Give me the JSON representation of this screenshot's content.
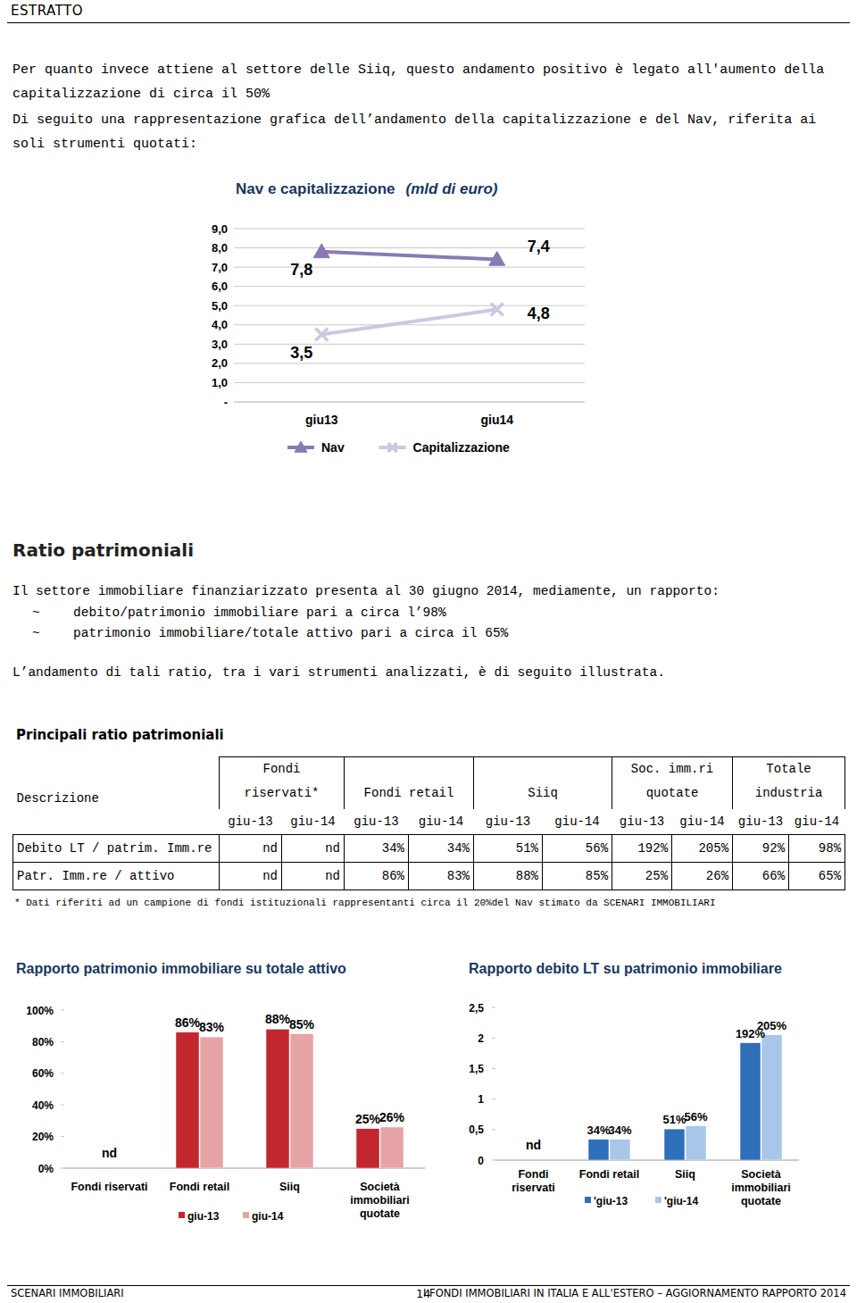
{
  "header": {
    "title": "ESTRATTO"
  },
  "paragraphs": [
    "Per quanto invece attiene al settore delle Siiq, questo andamento positivo è legato all'aumento della capitalizzazione di circa il 50%",
    "Di seguito una rappresentazione grafica dell’andamento della capitalizzazione e del Nav, riferita ai soli strumenti quotati:"
  ],
  "chart_data": [
    {
      "type": "line",
      "title": "Nav e capitalizzazione",
      "subtitle": "(mld di euro)",
      "categories": [
        "giu13",
        "giu14"
      ],
      "series": [
        {
          "name": "Nav",
          "color": "#8a7ab4",
          "marker": "triangle",
          "line_style": "solid",
          "values": [
            7.8,
            7.4
          ],
          "value_labels": [
            "7,8",
            "7,4"
          ]
        },
        {
          "name": "Capitalizzazione",
          "color": "#cdc7e2",
          "marker": "x",
          "line_style": "solid",
          "values": [
            3.5,
            4.8
          ],
          "value_labels": [
            "3,5",
            "4,8"
          ]
        }
      ],
      "ylim": [
        0,
        9
      ],
      "yticks": [
        {
          "value": 0,
          "label": "-"
        },
        {
          "value": 1,
          "label": "1,0"
        },
        {
          "value": 2,
          "label": "2,0"
        },
        {
          "value": 3,
          "label": "3,0"
        },
        {
          "value": 4,
          "label": "4,0"
        },
        {
          "value": 5,
          "label": "5,0"
        },
        {
          "value": 6,
          "label": "6,0"
        },
        {
          "value": 7,
          "label": "7,0"
        },
        {
          "value": 8,
          "label": "8,0"
        },
        {
          "value": 9,
          "label": "9,0"
        }
      ],
      "grid": true,
      "legend": "bottom",
      "data_labels": true
    },
    {
      "type": "bar",
      "title": "Rapporto patrimonio immobiliare su totale attivo",
      "categories": [
        "Fondi riservati",
        "Fondi retail",
        "Siiq",
        "Società immobiliari quotate"
      ],
      "series": [
        {
          "name": "giu-13",
          "color": "#c1272d",
          "values": [
            null,
            86,
            88,
            25
          ],
          "value_labels": [
            null,
            "86%",
            "88%",
            "25%"
          ]
        },
        {
          "name": "giu-14",
          "color": "#e6a4a6",
          "values": [
            null,
            83,
            85,
            26
          ],
          "value_labels": [
            null,
            "83%",
            "85%",
            "26%"
          ]
        }
      ],
      "annotations": [
        "nd"
      ],
      "ylim": [
        0,
        100
      ],
      "yticks": [
        {
          "value": 0,
          "label": "0%"
        },
        {
          "value": 20,
          "label": "20%"
        },
        {
          "value": 40,
          "label": "40%"
        },
        {
          "value": 60,
          "label": "60%"
        },
        {
          "value": 80,
          "label": "80%"
        },
        {
          "value": 100,
          "label": "100%"
        }
      ],
      "grid": false,
      "legend": "bottom",
      "data_labels": true
    },
    {
      "type": "bar",
      "title": "Rapporto debito LT su patrimonio immobiliare",
      "categories": [
        "Fondi riservati",
        "Fondi retail",
        "Siiq",
        "Società immobiliari quotate"
      ],
      "series": [
        {
          "name": "'giu-13",
          "color": "#2f6fba",
          "values": [
            null,
            0.34,
            0.51,
            1.92
          ],
          "value_labels": [
            null,
            "34%",
            "51%",
            "192%"
          ]
        },
        {
          "name": "'giu-14",
          "color": "#a8c7e8",
          "values": [
            null,
            0.34,
            0.56,
            2.05
          ],
          "value_labels": [
            null,
            "34%",
            "56%",
            "205%"
          ]
        }
      ],
      "annotations": [
        "nd"
      ],
      "ylim": [
        0,
        2.5
      ],
      "yticks": [
        0,
        {
          "value": 0.5,
          "label": "0,5"
        },
        1,
        {
          "value": 1.5,
          "label": "1,5"
        },
        2,
        {
          "value": 2.5,
          "label": "2,5"
        }
      ],
      "grid": false,
      "legend": "bottom",
      "data_labels": true
    }
  ],
  "section": {
    "title": "Ratio patrimoniali",
    "intro": "Il settore immobiliare finanziarizzato presenta al 30 giugno 2014, mediamente, un rapporto:",
    "bullet": "~",
    "bullets": [
      "debito/patrimonio immobiliare pari a circa l’98%",
      "patrimonio immobiliare/totale attivo pari a circa il 65%"
    ],
    "conclusion": "L’andamento di tali ratio, tra i vari strumenti analizzati, è di seguito illustrata."
  },
  "table": {
    "title": "Principali ratio patrimoniali",
    "columns": [
      "Descrizione",
      "Fondi riservati*",
      "Fondi retail",
      "Siiq",
      "Soc. imm.ri quotate",
      "Totale industria"
    ],
    "periods": [
      "giu-13",
      "giu-14"
    ],
    "rows": [
      [
        "Debito LT / patrim. Imm.re",
        "nd",
        "nd",
        "34%",
        "34%",
        "51%",
        "56%",
        "192%",
        "205%",
        "92%",
        "98%"
      ],
      [
        "Patr. Imm.re / attivo",
        "nd",
        "nd",
        "86%",
        "83%",
        "88%",
        "85%",
        "25%",
        "26%",
        "66%",
        "65%"
      ]
    ],
    "footnote": "* Dati riferiti ad un campione di fondi istituzionali rappresentanti circa il 20%del Nav stimato da SCENARI IMMOBILIARI"
  },
  "footer": {
    "left": "SCENARI IMMOBILIARI",
    "page": "14",
    "right": "I FONDI IMMOBILIARI IN ITALIA E ALL'ESTERO – AGGIORNAMENTO RAPPORTO 2014"
  }
}
